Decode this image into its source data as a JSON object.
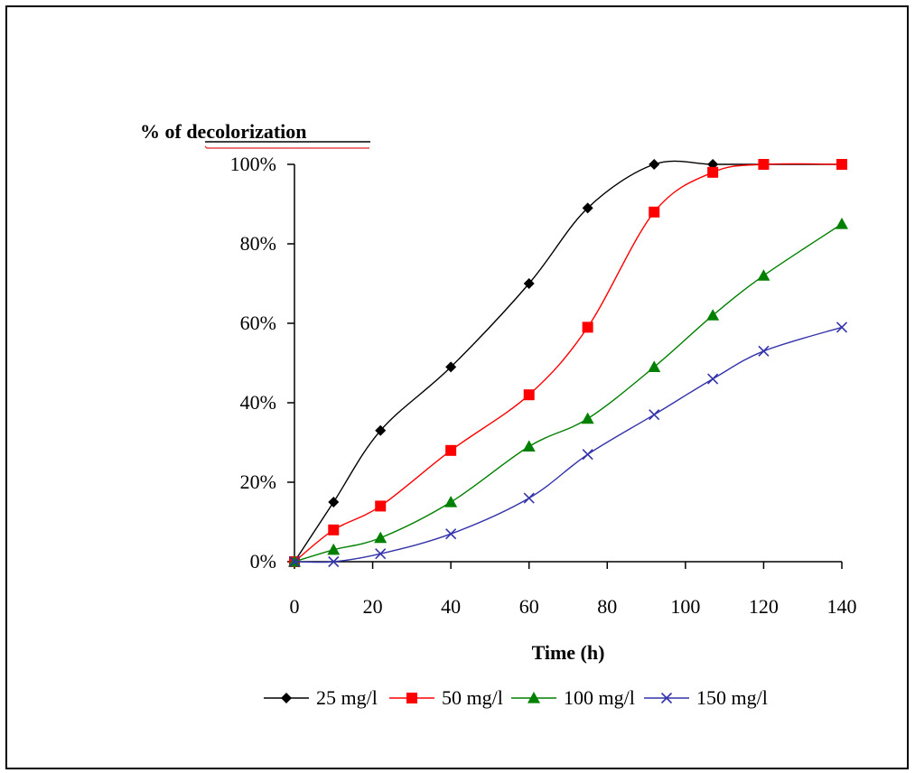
{
  "chart_data": {
    "type": "line",
    "ylabel": "% of decolorization",
    "xlabel": "Time (h)",
    "x_ticks": [
      "0",
      "20",
      "40",
      "60",
      "80",
      "100",
      "120",
      "140"
    ],
    "y_ticks": [
      "0%",
      "20%",
      "40%",
      "60%",
      "80%",
      "100%"
    ],
    "xlim": [
      0,
      140
    ],
    "ylim": [
      0,
      100
    ],
    "grid": false,
    "legend_position": "bottom",
    "series": [
      {
        "name": "25 mg/l",
        "color": "#000000",
        "marker": "diamond",
        "x": [
          0,
          10,
          22,
          40,
          60,
          75,
          92,
          107,
          120,
          140
        ],
        "y": [
          0,
          15,
          33,
          49,
          70,
          89,
          100,
          100,
          100,
          100
        ]
      },
      {
        "name": "50 mg/l",
        "color": "#ff0000",
        "marker": "square",
        "x": [
          0,
          10,
          22,
          40,
          60,
          75,
          92,
          107,
          120,
          140
        ],
        "y": [
          0,
          8,
          14,
          28,
          42,
          59,
          88,
          98,
          100,
          100
        ]
      },
      {
        "name": "100 mg/l",
        "color": "#008000",
        "marker": "triangle",
        "x": [
          0,
          10,
          22,
          40,
          60,
          75,
          92,
          107,
          120,
          140
        ],
        "y": [
          0,
          3,
          6,
          15,
          29,
          36,
          49,
          62,
          72,
          85
        ]
      },
      {
        "name": "150 mg/l",
        "color": "#3333aa",
        "marker": "x",
        "x": [
          0,
          10,
          22,
          40,
          60,
          75,
          92,
          107,
          120,
          140
        ],
        "y": [
          0,
          0,
          2,
          7,
          16,
          27,
          37,
          46,
          53,
          59
        ]
      }
    ]
  }
}
